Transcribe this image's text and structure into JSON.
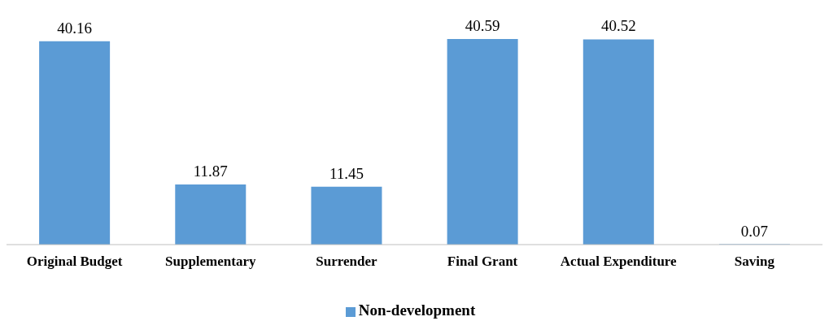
{
  "chart_data": {
    "type": "bar",
    "categories": [
      "Original Budget",
      "Supplementary",
      "Surrender",
      "Final Grant",
      "Actual Expenditure",
      "Saving"
    ],
    "series": [
      {
        "name": "Non-development",
        "color": "#5b9bd5",
        "values": [
          40.16,
          11.87,
          11.45,
          40.59,
          40.52,
          0.07
        ]
      }
    ],
    "data_labels": true,
    "legend": "bottom",
    "grid": false
  }
}
